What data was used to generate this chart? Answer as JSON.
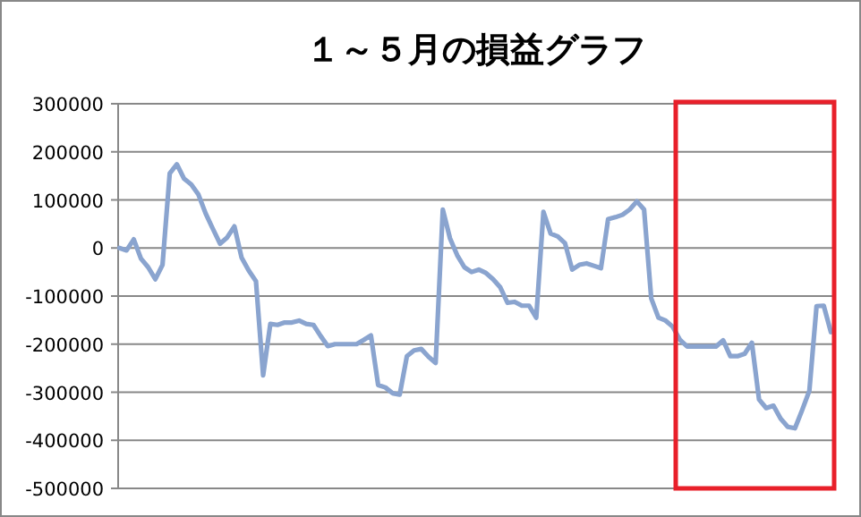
{
  "chart_data": {
    "type": "line",
    "title": "１～５月の損益グラフ",
    "categories": [
      null,
      null,
      null,
      null,
      null,
      null,
      null,
      null,
      null,
      null,
      null,
      null,
      null,
      null,
      null,
      null,
      null,
      null,
      null,
      null,
      null,
      null,
      null,
      null,
      null,
      null,
      null,
      null,
      null,
      null,
      null,
      null,
      null,
      null,
      null,
      null,
      null,
      null,
      null,
      null,
      null,
      null,
      null,
      null,
      null,
      null,
      null,
      null,
      null,
      null,
      null,
      null,
      null,
      null,
      null,
      null,
      null,
      null,
      null,
      null,
      null,
      null,
      null,
      null,
      null,
      null,
      null,
      null,
      null,
      null,
      null,
      null,
      null,
      null,
      null,
      null,
      null,
      null,
      null,
      null,
      null,
      null,
      null,
      null,
      null,
      null,
      null,
      null,
      null,
      null,
      null,
      null,
      null,
      null,
      null,
      null,
      null,
      null,
      null,
      null
    ],
    "series": [
      {
        "color": "#8aa4cf",
        "values": [
          0,
          -5000,
          18000,
          -22000,
          -40000,
          -65000,
          -35000,
          155000,
          174000,
          144000,
          132000,
          111000,
          72000,
          40000,
          9000,
          22000,
          45000,
          -20000,
          -47000,
          -69000,
          -265000,
          -158000,
          -160000,
          -155000,
          -155000,
          -151000,
          -158000,
          -160000,
          -183000,
          -204000,
          -200000,
          -200000,
          -200000,
          -200000,
          -191000,
          -182000,
          -285000,
          -290000,
          -302000,
          -305000,
          -225000,
          -213000,
          -210000,
          -226000,
          -239000,
          80000,
          20000,
          -15000,
          -40000,
          -50000,
          -45000,
          -52000,
          -65000,
          -82000,
          -114000,
          -112000,
          -120000,
          -120000,
          -145000,
          75000,
          30000,
          24000,
          10000,
          -45000,
          -35000,
          -32000,
          -37000,
          -42000,
          60000,
          64000,
          69000,
          80000,
          97000,
          80000,
          -105000,
          -145000,
          -151000,
          -164000,
          -191000,
          -205000,
          -205000,
          -205000,
          -205000,
          -205000,
          -192000,
          -225000,
          -225000,
          -220000,
          -197000,
          -315000,
          -333000,
          -328000,
          -355000,
          -372000,
          -375000,
          -337000,
          -297000,
          -121000,
          -120000,
          -175000
        ]
      }
    ],
    "ylim": [
      -500000,
      300000
    ],
    "yticks": [
      -500000,
      -400000,
      -300000,
      -200000,
      -100000,
      0,
      100000,
      200000,
      300000
    ],
    "grid": "y",
    "line_style": "solid"
  }
}
